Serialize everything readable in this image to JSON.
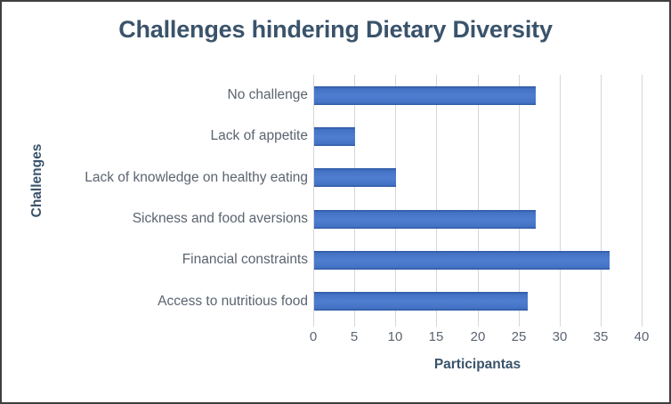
{
  "chart_data": {
    "type": "bar",
    "orientation": "horizontal",
    "title": "Challenges hindering Dietary Diversity",
    "xlabel": "Participantas",
    "ylabel": "Challenges",
    "categories": [
      "No challenge",
      "Lack of appetite",
      "Lack of knowledge on healthy eating",
      "Sickness and food aversions",
      "Financial constraints",
      "Access to nutritious food"
    ],
    "values": [
      27,
      5,
      10,
      27,
      36,
      26
    ],
    "xlim": [
      0,
      40
    ],
    "xticks": [
      0,
      5,
      10,
      15,
      20,
      25,
      30,
      35,
      40
    ],
    "grid": "vertical-gridlines-on",
    "legend": "none",
    "data_labels": "none",
    "colors": {
      "bar_fill": "#4472c4",
      "bar_edge_shade": "#2e58a2",
      "bar_mid_highlight": "#4f7dd0",
      "gridline": "#d6d6d6",
      "title_text": "#3a536b",
      "axis_tick_text": "#5b6470",
      "frame_border": "#3f3f3f"
    }
  }
}
